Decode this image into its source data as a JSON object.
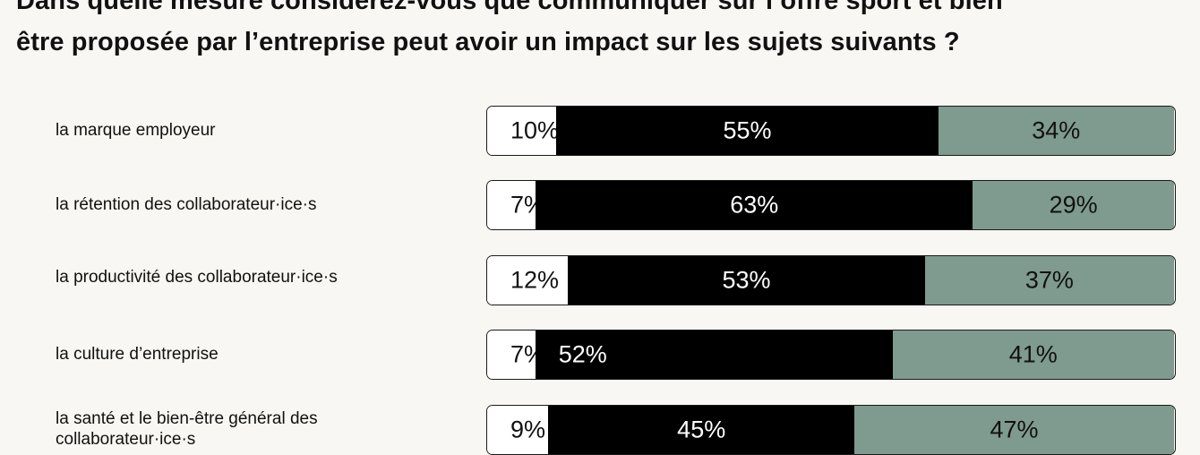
{
  "title": {
    "line1": "Dans quelle mesure considérez-vous que communiquer sur l’offre sport et bien",
    "line2": "être proposée par l’entreprise peut avoir un impact sur les sujets suivants ?"
  },
  "colors": {
    "background": "#f8f7f3",
    "segment_1": "#ffffff",
    "segment_2": "#000000",
    "segment_3": "#7f9a8f",
    "text_dark": "#111111",
    "text_light": "#ffffff"
  },
  "chart_data": {
    "type": "bar",
    "orientation": "horizontal",
    "stacked": true,
    "unit": "%",
    "categories": [
      "la marque employeur",
      "la rétention des collaborateur·ice·s",
      "la productivité des collaborateur·ice·s",
      "la culture d’entreprise",
      "la santé et le bien-être général des collaborateur·ice·s"
    ],
    "series": [
      {
        "color": "#ffffff",
        "values": [
          10,
          7,
          12,
          7,
          9
        ]
      },
      {
        "color": "#000000",
        "values": [
          55,
          63,
          53,
          52,
          45
        ]
      },
      {
        "color": "#7f9a8f",
        "values": [
          34,
          29,
          37,
          41,
          47
        ]
      }
    ],
    "value_labels": [
      [
        "10%",
        "55%",
        "34%"
      ],
      [
        "7%",
        "63%",
        "29%"
      ],
      [
        "12%",
        "53%",
        "37%"
      ],
      [
        "7%",
        "52%",
        "41%"
      ],
      [
        "9%",
        "45%",
        "47%"
      ]
    ],
    "label_align": [
      [
        "left",
        "center",
        "center"
      ],
      [
        "left",
        "center",
        "center"
      ],
      [
        "left",
        "center",
        "center"
      ],
      [
        "left",
        "left",
        "center"
      ],
      [
        "left",
        "center",
        "center"
      ]
    ],
    "legend": "none",
    "grid": false
  }
}
